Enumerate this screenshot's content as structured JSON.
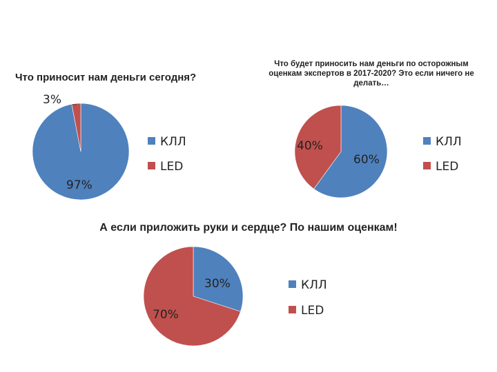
{
  "titles": {
    "chart1": "Что приносит нам деньги сегодня?",
    "chart2": "Что будет приносить нам деньги по осторожным оценкам экспертов в 2017-2020? Это если ничего не делать…",
    "chart3": "А если приложить руки и сердце? По нашим оценкам!"
  },
  "colors": {
    "КЛЛ": "#4f81bd",
    "LED": "#c0504d"
  },
  "chart_data": [
    {
      "type": "pie",
      "title": "Что приносит нам деньги сегодня?",
      "categories": [
        "КЛЛ",
        "LED"
      ],
      "values": [
        97,
        3
      ],
      "data_labels": [
        "97%",
        "3%"
      ],
      "legend": "right"
    },
    {
      "type": "pie",
      "title": "Что будет приносить нам деньги по осторожным оценкам экспертов в 2017-2020? Это если ничего не делать…",
      "categories": [
        "КЛЛ",
        "LED"
      ],
      "values": [
        60,
        40
      ],
      "data_labels": [
        "60%",
        "40%"
      ],
      "legend": "right"
    },
    {
      "type": "pie",
      "title": "А если приложить руки и сердце? По нашим оценкам!",
      "categories": [
        "КЛЛ",
        "LED"
      ],
      "values": [
        30,
        70
      ],
      "data_labels": [
        "30%",
        "70%"
      ],
      "legend": "right"
    }
  ]
}
